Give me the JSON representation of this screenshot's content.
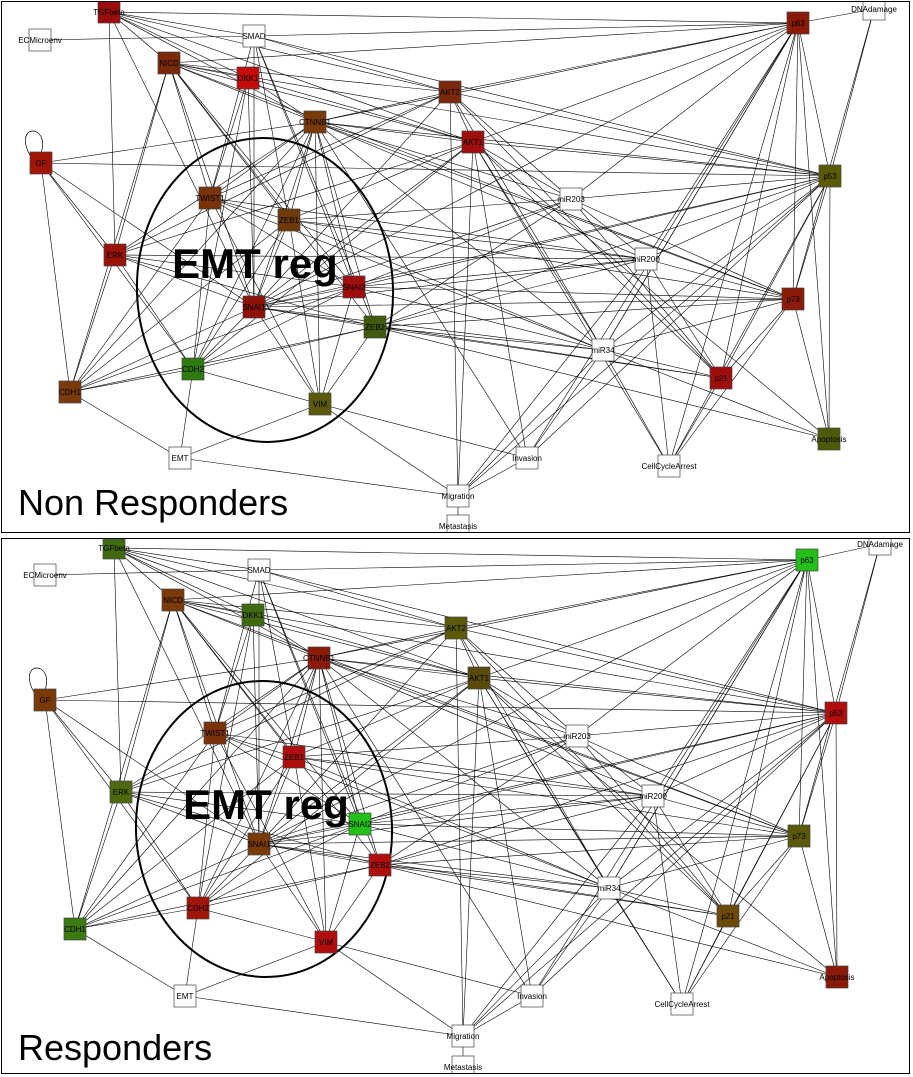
{
  "panels": [
    {
      "title": "Non Responders",
      "region_label": "EMT reg",
      "nodes": [
        {
          "id": "TGFbeta",
          "label": "TGFbeta",
          "color": "#9b0d0d"
        },
        {
          "id": "ECMicroenv",
          "label": "ECMicroenv",
          "color": "#ffffff"
        },
        {
          "id": "SMAD",
          "label": "SMAD",
          "color": "#ffffff"
        },
        {
          "id": "NICD",
          "label": "NICD",
          "color": "#7a2a0a"
        },
        {
          "id": "DKK1",
          "label": "DKK1",
          "color": "#c40b0b"
        },
        {
          "id": "CTNNB1",
          "label": "CTNNB1",
          "color": "#7a3a0a"
        },
        {
          "id": "AKT2",
          "label": "AKT2",
          "color": "#7a2a0a"
        },
        {
          "id": "AKT1",
          "label": "AKT1",
          "color": "#a00d0d"
        },
        {
          "id": "GF",
          "label": "GF",
          "color": "#a01508"
        },
        {
          "id": "TWIST1",
          "label": "TWIST1",
          "color": "#7a320a"
        },
        {
          "id": "ZEB1",
          "label": "ZEB1",
          "color": "#6e3a0a"
        },
        {
          "id": "ERK",
          "label": "ERK",
          "color": "#9b1208"
        },
        {
          "id": "SNAI2",
          "label": "SNAI2",
          "color": "#a00d0d"
        },
        {
          "id": "SNAI1",
          "label": "SNAI1",
          "color": "#8c1208"
        },
        {
          "id": "ZEB2",
          "label": "ZEB2",
          "color": "#3f5a0c"
        },
        {
          "id": "CDH2",
          "label": "CDH2",
          "color": "#2e7a10"
        },
        {
          "id": "CDH1",
          "label": "CDH1",
          "color": "#7a3a0a"
        },
        {
          "id": "VIM",
          "label": "VIM",
          "color": "#5a5a0a"
        },
        {
          "id": "EMT",
          "label": "EMT",
          "color": "#ffffff"
        },
        {
          "id": "miR203",
          "label": "miR203",
          "color": "#ffffff"
        },
        {
          "id": "miR200",
          "label": "miR200",
          "color": "#ffffff"
        },
        {
          "id": "miR34",
          "label": "miR34",
          "color": "#ffffff"
        },
        {
          "id": "p63",
          "label": "p63",
          "color": "#8c1a08"
        },
        {
          "id": "DNAdamage",
          "label": "DNAdamage",
          "color": "#ffffff"
        },
        {
          "id": "p53",
          "label": "p53",
          "color": "#5a5a0a"
        },
        {
          "id": "p73",
          "label": "p73",
          "color": "#8c1a08"
        },
        {
          "id": "p21",
          "label": "p21",
          "color": "#a00d0d"
        },
        {
          "id": "Apoptosis",
          "label": "Apoptosis",
          "color": "#4e5a0a"
        },
        {
          "id": "CellCycleArrest",
          "label": "CellCycleArrest",
          "color": "#ffffff"
        },
        {
          "id": "Invasion",
          "label": "Invasion",
          "color": "#ffffff"
        },
        {
          "id": "Migration",
          "label": "Migration",
          "color": "#ffffff"
        },
        {
          "id": "Metastasis",
          "label": "Metastasis",
          "color": "#ffffff"
        }
      ]
    },
    {
      "title": "Responders",
      "region_label": "EMT reg",
      "nodes": [
        {
          "id": "TGFbeta",
          "label": "TGFbeta",
          "color": "#3f6a10"
        },
        {
          "id": "ECMicroenv",
          "label": "ECMicroenv",
          "color": "#ffffff"
        },
        {
          "id": "SMAD",
          "label": "SMAD",
          "color": "#ffffff"
        },
        {
          "id": "NICD",
          "label": "NICD",
          "color": "#7a3a0a"
        },
        {
          "id": "DKK1",
          "label": "DKK1",
          "color": "#3f6a10"
        },
        {
          "id": "CTNNB1",
          "label": "CTNNB1",
          "color": "#8c1a08"
        },
        {
          "id": "AKT2",
          "label": "AKT2",
          "color": "#5a5a0a"
        },
        {
          "id": "AKT1",
          "label": "AKT1",
          "color": "#5a4a0a"
        },
        {
          "id": "GF",
          "label": "GF",
          "color": "#7a3a0a"
        },
        {
          "id": "TWIST1",
          "label": "TWIST1",
          "color": "#7a320a"
        },
        {
          "id": "ZEB1",
          "label": "ZEB1",
          "color": "#b00d0d"
        },
        {
          "id": "ERK",
          "label": "ERK",
          "color": "#4e6a10"
        },
        {
          "id": "SNAI2",
          "label": "SNAI2",
          "color": "#22c018"
        },
        {
          "id": "SNAI1",
          "label": "SNAI1",
          "color": "#7a3a0a"
        },
        {
          "id": "ZEB2",
          "label": "ZEB2",
          "color": "#b00d0d"
        },
        {
          "id": "CDH2",
          "label": "CDH2",
          "color": "#a01508"
        },
        {
          "id": "CDH1",
          "label": "CDH1",
          "color": "#3a7a10"
        },
        {
          "id": "VIM",
          "label": "VIM",
          "color": "#b00d0d"
        },
        {
          "id": "EMT",
          "label": "EMT",
          "color": "#ffffff"
        },
        {
          "id": "miR203",
          "label": "miR203",
          "color": "#ffffff"
        },
        {
          "id": "miR200",
          "label": "miR200",
          "color": "#ffffff"
        },
        {
          "id": "miR34",
          "label": "miR34",
          "color": "#ffffff"
        },
        {
          "id": "p63",
          "label": "p63",
          "color": "#22c018"
        },
        {
          "id": "DNAdamage",
          "label": "DNAdamage",
          "color": "#ffffff"
        },
        {
          "id": "p53",
          "label": "p53",
          "color": "#b00d0d"
        },
        {
          "id": "p73",
          "label": "p73",
          "color": "#5a5a0a"
        },
        {
          "id": "p21",
          "label": "p21",
          "color": "#6e4a0a"
        },
        {
          "id": "Apoptosis",
          "label": "Apoptosis",
          "color": "#8c1a08"
        },
        {
          "id": "CellCycleArrest",
          "label": "CellCycleArrest",
          "color": "#ffffff"
        },
        {
          "id": "Invasion",
          "label": "Invasion",
          "color": "#ffffff"
        },
        {
          "id": "Migration",
          "label": "Migration",
          "color": "#ffffff"
        },
        {
          "id": "Metastasis",
          "label": "Metastasis",
          "color": "#ffffff"
        }
      ]
    }
  ]
}
